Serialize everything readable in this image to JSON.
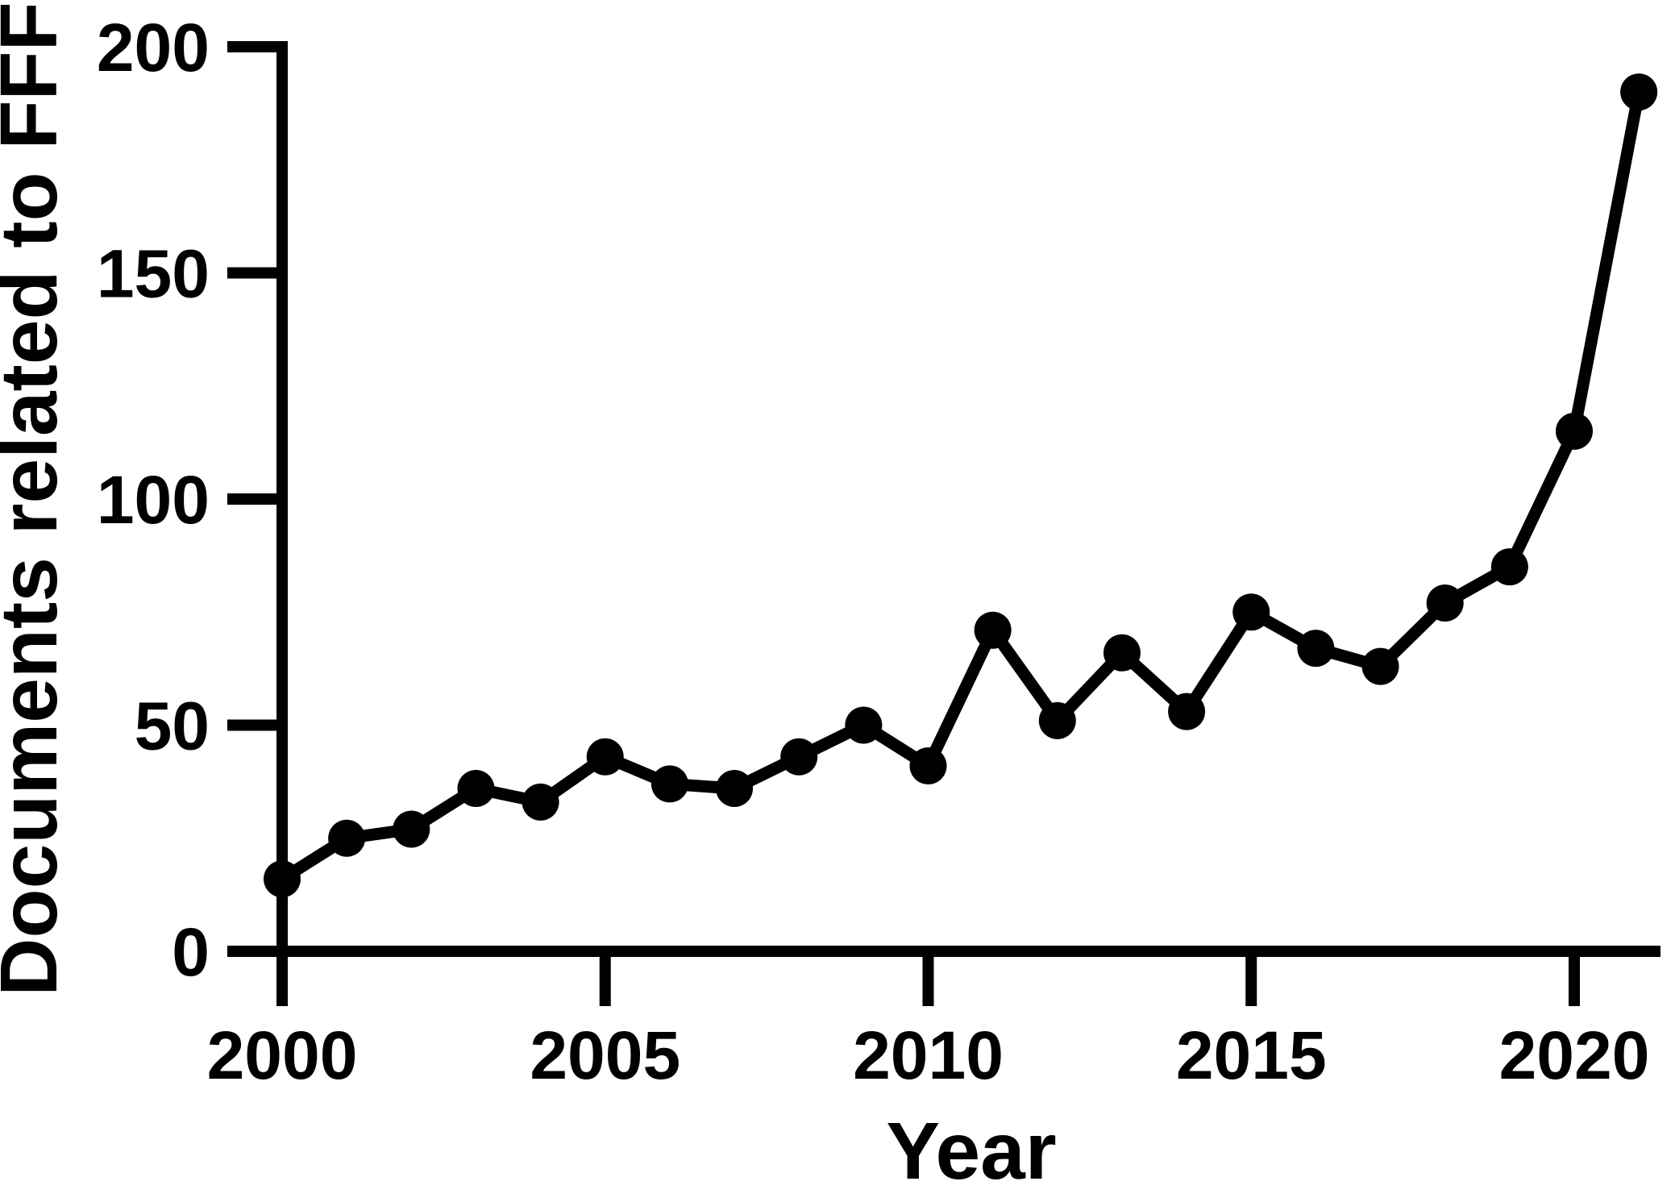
{
  "chart_data": {
    "type": "line",
    "title": "",
    "xlabel": "Year",
    "ylabel": "Documents related to FFF",
    "x": [
      2000,
      2001,
      2002,
      2003,
      2004,
      2005,
      2006,
      2007,
      2008,
      2009,
      2010,
      2011,
      2012,
      2013,
      2014,
      2015,
      2016,
      2017,
      2018,
      2019,
      2020,
      2021
    ],
    "series": [
      {
        "name": "Documents related to FFF",
        "values": [
          16,
          25,
          27,
          36,
          33,
          43,
          37,
          36,
          43,
          50,
          41,
          71,
          51,
          66,
          53,
          75,
          67,
          63,
          77,
          85,
          115,
          190
        ]
      }
    ],
    "xticks": [
      2000,
      2005,
      2010,
      2015,
      2020
    ],
    "yticks": [
      0,
      50,
      100,
      150,
      200
    ],
    "xlim": [
      2000,
      2021
    ],
    "ylim": [
      0,
      200
    ],
    "grid": false,
    "legend_position": "none",
    "marker": "filled-circle",
    "line_color": "#000000",
    "marker_color": "#000000",
    "axis_color": "#000000",
    "background_color": "#ffffff"
  }
}
